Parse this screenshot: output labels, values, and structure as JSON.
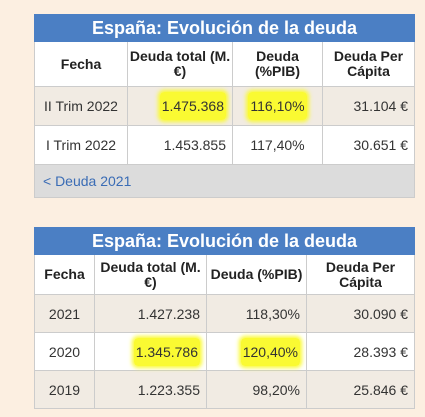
{
  "table1": {
    "title": "España: Evolución de la deuda",
    "headers": [
      "Fecha",
      "Deuda total (M.€)",
      "Deuda (%PIB)",
      "Deuda Per Cápita"
    ],
    "rows": [
      {
        "fecha": "II Trim 2022",
        "total": "1.475.368",
        "pib": "116,10%",
        "capita": "31.104 €"
      },
      {
        "fecha": "I Trim 2022",
        "total": "1.453.855",
        "pib": "117,40%",
        "capita": "30.651 €"
      }
    ],
    "link": "< Deuda 2021"
  },
  "table2": {
    "title": "España: Evolución de la deuda",
    "headers": [
      "Fecha",
      "Deuda total (M.€)",
      "Deuda (%PIB)",
      "Deuda Per Cápita"
    ],
    "rows": [
      {
        "fecha": "2021",
        "total": "1.427.238",
        "pib": "118,30%",
        "capita": "30.090 €"
      },
      {
        "fecha": "2020",
        "total": "1.345.786",
        "pib": "120,40%",
        "capita": "28.393 €"
      },
      {
        "fecha": "2019",
        "total": "1.223.355",
        "pib": "98,20%",
        "capita": "25.846 €"
      }
    ]
  },
  "highlight_color": "#fafa32"
}
